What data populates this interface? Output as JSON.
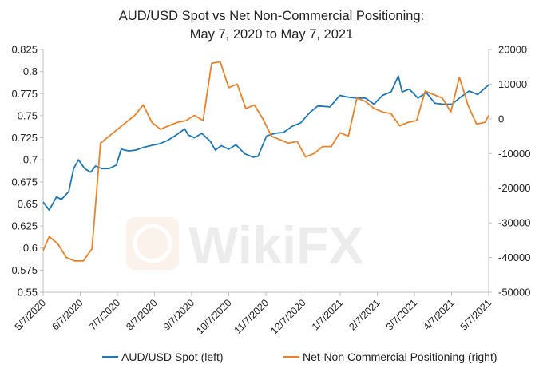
{
  "chart_data": {
    "type": "line",
    "title": [
      "AUD/USD Spot vs Net Non-Commercial Positioning:",
      "May 7, 2020 to May 7, 2021"
    ],
    "x_ticks": [
      "5/7/2020",
      "6/7/2020",
      "7/7/2020",
      "8/7/2020",
      "9/7/2020",
      "10/7/2020",
      "11/7/2020",
      "12/7/2020",
      "1/7/2021",
      "2/7/2021",
      "3/7/2021",
      "4/7/2021",
      "5/7/2021"
    ],
    "x_range": [
      "2020-05-07",
      "2021-05-07"
    ],
    "y_left": {
      "min": 0.55,
      "max": 0.825,
      "ticks": [
        "0.825",
        "0.8",
        "0.775",
        "0.75",
        "0.725",
        "0.7",
        "0.675",
        "0.65",
        "0.625",
        "0.6",
        "0.575",
        "0.55"
      ]
    },
    "y_right": {
      "min": -50000,
      "max": 20000,
      "ticks": [
        "20000",
        "10000",
        "0",
        "-10000",
        "-20000",
        "-30000",
        "-40000",
        "-50000"
      ]
    },
    "colors": {
      "spot": "#1f77b4",
      "positioning": "#e8822a",
      "axis": "#bfbfbf",
      "text": "#222222"
    },
    "series": [
      {
        "name": "AUD/USD Spot (left)",
        "axis": "left",
        "x": [
          "2020-05-07",
          "2020-05-12",
          "2020-05-18",
          "2020-05-22",
          "2020-05-28",
          "2020-06-01",
          "2020-06-05",
          "2020-06-10",
          "2020-06-15",
          "2020-06-19",
          "2020-06-24",
          "2020-06-30",
          "2020-07-06",
          "2020-07-10",
          "2020-07-16",
          "2020-07-22",
          "2020-07-28",
          "2020-08-03",
          "2020-08-10",
          "2020-08-17",
          "2020-08-24",
          "2020-08-31",
          "2020-09-03",
          "2020-09-08",
          "2020-09-14",
          "2020-09-21",
          "2020-09-25",
          "2020-09-30",
          "2020-10-06",
          "2020-10-12",
          "2020-10-19",
          "2020-10-26",
          "2020-10-30",
          "2020-11-06",
          "2020-11-13",
          "2020-11-20",
          "2020-11-27",
          "2020-12-04",
          "2020-12-11",
          "2020-12-18",
          "2020-12-28",
          "2021-01-05",
          "2021-01-12",
          "2021-01-19",
          "2021-01-26",
          "2021-02-02",
          "2021-02-09",
          "2021-02-16",
          "2021-02-22",
          "2021-02-25",
          "2021-03-03",
          "2021-03-10",
          "2021-03-17",
          "2021-03-24",
          "2021-03-31",
          "2021-04-07",
          "2021-04-14",
          "2021-04-21",
          "2021-04-28",
          "2021-05-07"
        ],
        "values": [
          0.652,
          0.643,
          0.658,
          0.655,
          0.664,
          0.69,
          0.7,
          0.69,
          0.686,
          0.693,
          0.69,
          0.69,
          0.694,
          0.712,
          0.71,
          0.711,
          0.714,
          0.716,
          0.718,
          0.722,
          0.728,
          0.735,
          0.728,
          0.725,
          0.73,
          0.721,
          0.711,
          0.716,
          0.712,
          0.717,
          0.707,
          0.703,
          0.704,
          0.727,
          0.73,
          0.731,
          0.738,
          0.742,
          0.753,
          0.761,
          0.76,
          0.773,
          0.771,
          0.77,
          0.77,
          0.763,
          0.773,
          0.777,
          0.795,
          0.777,
          0.78,
          0.77,
          0.776,
          0.764,
          0.763,
          0.763,
          0.771,
          0.778,
          0.774,
          0.785
        ]
      },
      {
        "name": "Net-Non Commercial Positioning (right)",
        "axis": "right",
        "x": [
          "2020-05-07",
          "2020-05-12",
          "2020-05-19",
          "2020-05-26",
          "2020-06-02",
          "2020-06-09",
          "2020-06-16",
          "2020-06-23",
          "2020-06-30",
          "2020-07-07",
          "2020-07-14",
          "2020-07-21",
          "2020-07-28",
          "2020-08-04",
          "2020-08-11",
          "2020-08-18",
          "2020-08-25",
          "2020-09-01",
          "2020-09-08",
          "2020-09-15",
          "2020-09-22",
          "2020-09-29",
          "2020-10-06",
          "2020-10-13",
          "2020-10-20",
          "2020-10-27",
          "2020-11-03",
          "2020-11-10",
          "2020-11-17",
          "2020-11-24",
          "2020-12-01",
          "2020-12-08",
          "2020-12-15",
          "2020-12-22",
          "2020-12-29",
          "2021-01-05",
          "2021-01-12",
          "2021-01-19",
          "2021-01-26",
          "2021-02-02",
          "2021-02-09",
          "2021-02-16",
          "2021-02-23",
          "2021-03-02",
          "2021-03-09",
          "2021-03-16",
          "2021-03-23",
          "2021-03-30",
          "2021-04-06",
          "2021-04-13",
          "2021-04-20",
          "2021-04-27",
          "2021-05-04",
          "2021-05-07"
        ],
        "values": [
          -38000,
          -34000,
          -36000,
          -40000,
          -41000,
          -41000,
          -37500,
          -7000,
          -5000,
          -3000,
          -1000,
          1000,
          4000,
          -1000,
          -3000,
          -2000,
          -1000,
          -500,
          1000,
          -500,
          16000,
          16500,
          9000,
          10000,
          3000,
          4000,
          0,
          -5000,
          -6000,
          -7000,
          -6500,
          -11000,
          -10000,
          -8000,
          -8000,
          -4000,
          -5000,
          6000,
          5000,
          3000,
          2000,
          1500,
          -2000,
          -1000,
          -500,
          8000,
          7000,
          6000,
          2000,
          12000,
          4000,
          -1500,
          -1000,
          1000
        ]
      }
    ]
  },
  "watermark": "WikiFX"
}
